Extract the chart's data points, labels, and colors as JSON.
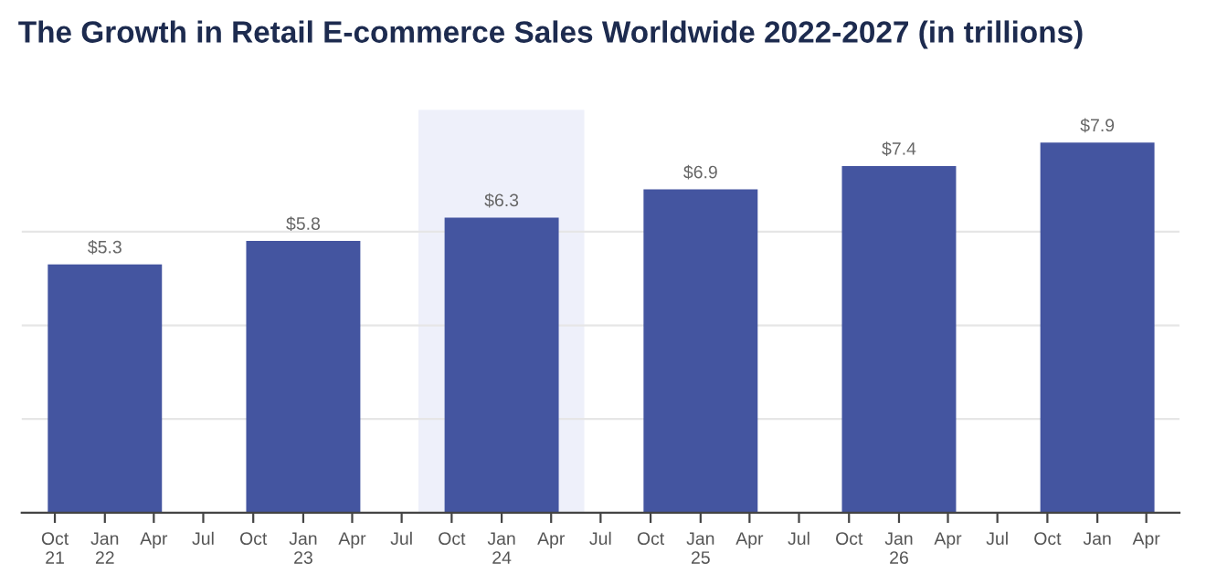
{
  "chart_data": {
    "type": "bar",
    "title": "The Growth in Retail E-commerce Sales Worldwide 2022-2027 (in trillions)",
    "x": [
      "2022-01",
      "2023-01",
      "2024-01",
      "2025-01",
      "2026-01",
      "2027-01"
    ],
    "values": [
      5.3,
      5.8,
      6.3,
      6.9,
      7.4,
      7.9
    ],
    "value_labels": [
      "$5.3",
      "$5.8",
      "$6.3",
      "$6.9",
      "$7.4",
      "$7.9"
    ],
    "color": "#4455a0",
    "xlim": [
      "2021-08",
      "2027-06"
    ],
    "xticks": [
      {
        "value": "2021-10",
        "label": "Oct\n21"
      },
      {
        "value": "2022-01",
        "label": "Jan\n22"
      },
      {
        "value": "2022-04",
        "label": "Apr"
      },
      {
        "value": "2022-07",
        "label": "Jul"
      },
      {
        "value": "2022-10",
        "label": "Oct"
      },
      {
        "value": "2023-01",
        "label": "Jan\n23"
      },
      {
        "value": "2023-04",
        "label": "Apr"
      },
      {
        "value": "2023-07",
        "label": "Jul"
      },
      {
        "value": "2023-10",
        "label": "Oct"
      },
      {
        "value": "2024-01",
        "label": "Jan\n24"
      },
      {
        "value": "2024-04",
        "label": "Apr"
      },
      {
        "value": "2024-07",
        "label": "Jul"
      },
      {
        "value": "2024-10",
        "label": "Oct"
      },
      {
        "value": "2025-01",
        "label": "Jan\n25"
      },
      {
        "value": "2025-04",
        "label": "Apr"
      },
      {
        "value": "2025-07",
        "label": "Jul"
      },
      {
        "value": "2025-10",
        "label": "Oct"
      },
      {
        "value": "2026-01",
        "label": "Jan\n26"
      },
      {
        "value": "2026-04",
        "label": "Apr"
      },
      {
        "value": "2026-07",
        "label": "Jul"
      },
      {
        "value": "2026-10",
        "label": "Oct"
      },
      {
        "value": "2027-01",
        "label": "Jan"
      },
      {
        "value": "2027-04",
        "label": "Apr"
      }
    ],
    "ylim": [
      0,
      8.6
    ],
    "yticks": [
      {
        "value": 2,
        "label": null
      },
      {
        "value": 4,
        "label": null
      },
      {
        "value": 6,
        "label": null
      }
    ],
    "grid": "y",
    "tick_labels": "x",
    "bands": [
      {
        "axis": "x",
        "from": "2023-08",
        "to": "2024-06",
        "label": null,
        "color": "#eef0fa"
      }
    ]
  }
}
